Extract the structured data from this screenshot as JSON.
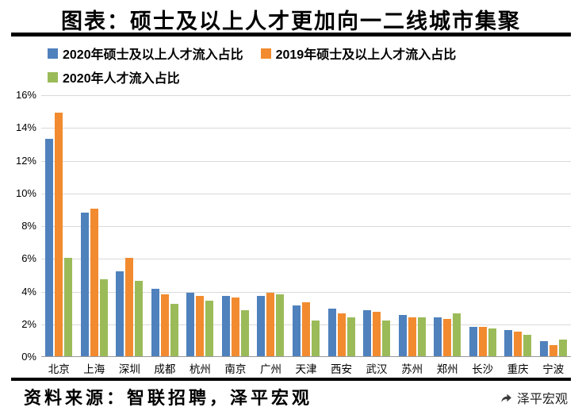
{
  "title": "图表：硕士及以上人才更加向一二线城市集聚",
  "source_note": "资料来源：智联招聘，泽平宏观",
  "watermark": "泽平宏观",
  "chart_data": {
    "type": "bar",
    "title": "图表：硕士及以上人才更加向一二线城市集聚",
    "categories": [
      "北京",
      "上海",
      "深圳",
      "成都",
      "杭州",
      "南京",
      "广州",
      "天津",
      "西安",
      "武汉",
      "苏州",
      "郑州",
      "长沙",
      "重庆",
      "宁波"
    ],
    "series": [
      {
        "name": "2020年硕士及以上人才流入占比",
        "color": "#4F81BD",
        "values": [
          13.3,
          8.8,
          5.2,
          4.1,
          3.9,
          3.7,
          3.7,
          3.1,
          2.9,
          2.8,
          2.5,
          2.4,
          1.8,
          1.6,
          0.9
        ]
      },
      {
        "name": "2019年硕士及以上人才流入占比",
        "color": "#F28B30",
        "values": [
          14.9,
          9.0,
          6.0,
          3.8,
          3.7,
          3.6,
          3.9,
          3.3,
          2.6,
          2.7,
          2.4,
          2.3,
          1.8,
          1.5,
          0.7
        ]
      },
      {
        "name": "2020年人才流入占比",
        "color": "#9BBB59",
        "values": [
          6.0,
          4.7,
          4.6,
          3.2,
          3.4,
          2.8,
          3.8,
          2.2,
          2.4,
          2.2,
          2.4,
          2.6,
          1.7,
          1.3,
          1.0
        ]
      }
    ],
    "xlabel": "",
    "ylabel": "",
    "ylim": [
      0,
      16
    ],
    "ytick_step": 2,
    "ytick_suffix": "%",
    "grid": true,
    "legend_position": "top-left"
  }
}
